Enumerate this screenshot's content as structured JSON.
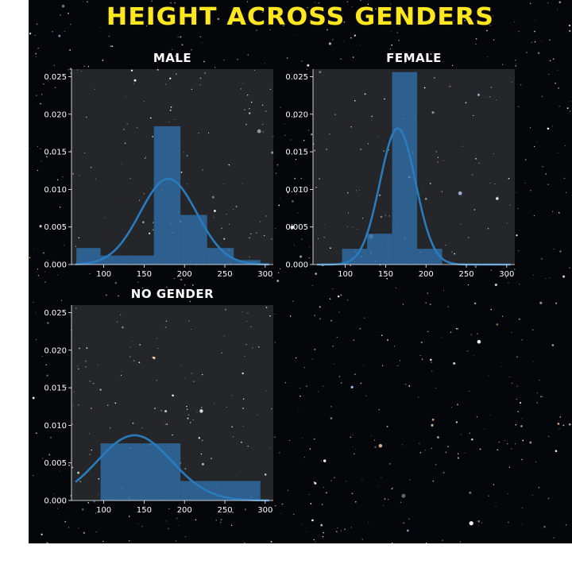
{
  "title": "Height across genders",
  "colors": {
    "title": "#ffe81f",
    "bars": "#2f6ea6",
    "kde": "#2a7bbd",
    "axis_text": "#ffffff",
    "background": "#05060a"
  },
  "chart_data": [
    {
      "type": "bar",
      "title": "male",
      "bins": [
        [
          66,
          96
        ],
        [
          96,
          129
        ],
        [
          129,
          162
        ],
        [
          162,
          195
        ],
        [
          195,
          228
        ],
        [
          228,
          261
        ],
        [
          261,
          294
        ]
      ],
      "values": [
        0.0022,
        0.0012,
        0.0012,
        0.0184,
        0.0066,
        0.0022,
        0.0006
      ],
      "kde_mu": 180,
      "kde_sigma": 35,
      "xlim": [
        60,
        310
      ],
      "ylim": [
        0,
        0.026
      ],
      "xticks": [
        "100",
        "150",
        "200",
        "250",
        "300"
      ],
      "yticks": [
        "0.000",
        "0.005",
        "0.010",
        "0.015",
        "0.020",
        "0.025"
      ],
      "grid": false
    },
    {
      "type": "bar",
      "title": "female",
      "bins": [
        [
          96,
          127
        ],
        [
          127,
          158
        ],
        [
          158,
          189
        ],
        [
          189,
          220
        ]
      ],
      "values": [
        0.0021,
        0.0041,
        0.0256,
        0.0021
      ],
      "kde_mu": 165,
      "kde_sigma": 22,
      "xlim": [
        60,
        310
      ],
      "ylim": [
        0,
        0.026
      ],
      "xticks": [
        "100",
        "150",
        "200",
        "250",
        "300"
      ],
      "yticks": [
        "0.000",
        "0.005",
        "0.010",
        "0.015",
        "0.020",
        "0.025"
      ],
      "grid": false
    },
    {
      "type": "bar",
      "title": "no gender",
      "bins": [
        [
          96,
          195
        ],
        [
          195,
          294
        ]
      ],
      "values": [
        0.0076,
        0.0026
      ],
      "kde_mu": 138,
      "kde_sigma": 46,
      "xlim": [
        60,
        310
      ],
      "ylim": [
        0,
        0.026
      ],
      "xticks": [
        "100",
        "150",
        "200",
        "250",
        "300"
      ],
      "yticks": [
        "0.000",
        "0.005",
        "0.010",
        "0.015",
        "0.020",
        "0.025"
      ],
      "grid": false
    }
  ]
}
